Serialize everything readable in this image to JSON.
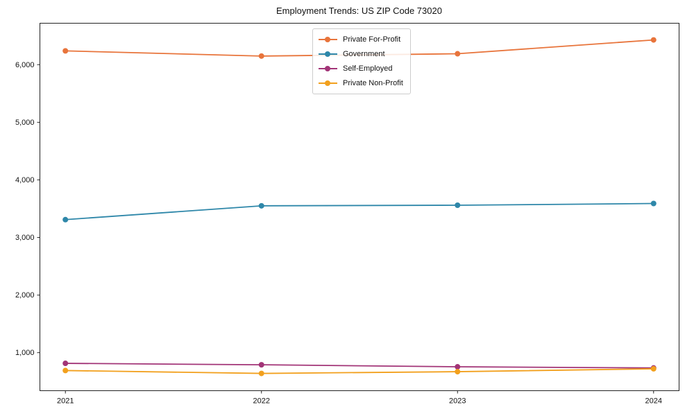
{
  "title": "Employment Trends: US ZIP Code 73020",
  "chart_data": {
    "type": "line",
    "title": "Employment Trends: US ZIP Code 73020",
    "x": [
      2021,
      2022,
      2023,
      2024
    ],
    "categories": [
      "2021",
      "2022",
      "2023",
      "2024"
    ],
    "series": [
      {
        "name": "Private For-Profit",
        "color": "#E8743B",
        "values": [
          6240,
          6150,
          6190,
          6430
        ]
      },
      {
        "name": "Government",
        "color": "#2E87A9",
        "values": [
          3310,
          3550,
          3560,
          3590
        ]
      },
      {
        "name": "Self-Employed",
        "color": "#A23477",
        "values": [
          815,
          790,
          755,
          735
        ]
      },
      {
        "name": "Private Non-Profit",
        "color": "#F2A01D",
        "values": [
          690,
          640,
          670,
          720
        ]
      }
    ],
    "xlabel": "",
    "ylabel": "",
    "xlim": [
      2020.87,
      2024.13
    ],
    "ylim": [
      340,
      6720
    ],
    "yticks": [
      1000,
      2000,
      3000,
      4000,
      5000,
      6000
    ],
    "grid": false,
    "legend_position": "upper center",
    "axis_color": "#222222",
    "tick_label_color": "#111111"
  }
}
